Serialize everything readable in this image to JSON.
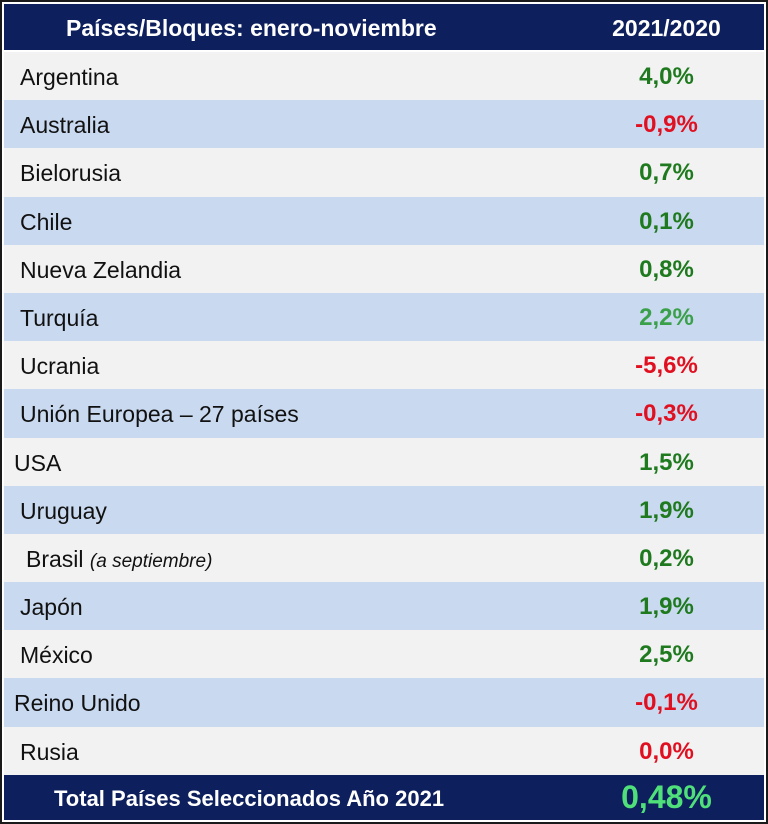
{
  "colors": {
    "header_bg": "#0d1f5c",
    "row_light": "#f2f2f2",
    "row_blue": "#c9d9ef",
    "positive": "#1f7a1f",
    "positive_light": "#3aa04a",
    "negative": "#e01020",
    "total": "#4fe07a"
  },
  "chart_data": {
    "type": "table",
    "columns": [
      "Países/Bloques: enero-noviembre",
      "2021/2020"
    ],
    "rows": [
      {
        "name": "Argentina",
        "value": "4,0%",
        "sign": "positive"
      },
      {
        "name": "Australia",
        "value": "-0,9%",
        "sign": "negative"
      },
      {
        "name": "Bielorusia",
        "value": "0,7%",
        "sign": "positive"
      },
      {
        "name": "Chile",
        "value": "0,1%",
        "sign": "positive"
      },
      {
        "name": "Nueva Zelandia",
        "value": "0,8%",
        "sign": "positive"
      },
      {
        "name": "Turquía",
        "value": "2,2%",
        "sign": "positive_light"
      },
      {
        "name": "Ucrania",
        "value": "-5,6%",
        "sign": "negative"
      },
      {
        "name": "Unión Europea – 27 países",
        "value": "-0,3%",
        "sign": "negative"
      },
      {
        "name": "USA",
        "value": "1,5%",
        "sign": "positive"
      },
      {
        "name": "Uruguay",
        "value": "1,9%",
        "sign": "positive"
      },
      {
        "name": "Brasil",
        "note": "(a septiembre)",
        "value": "0,2%",
        "sign": "positive"
      },
      {
        "name": "Japón",
        "value": "1,9%",
        "sign": "positive"
      },
      {
        "name": "México",
        "value": "2,5%",
        "sign": "positive"
      },
      {
        "name": "Reino Unido",
        "value": "-0,1%",
        "sign": "negative"
      },
      {
        "name": "Rusia",
        "value": "0,0%",
        "sign": "negative"
      }
    ],
    "total": {
      "label": "Total Países Seleccionados Año 2021",
      "value": "0,48%"
    }
  }
}
